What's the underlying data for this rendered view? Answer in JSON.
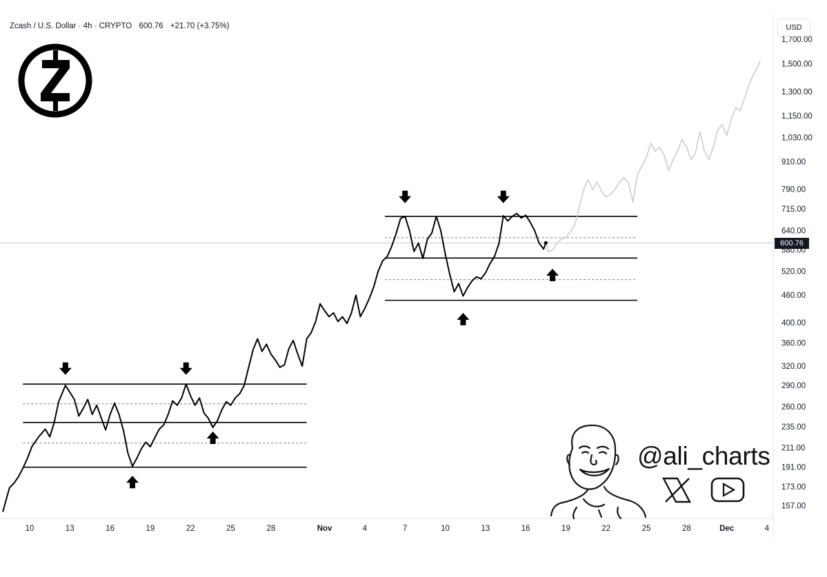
{
  "header": {
    "symbol": "Zcash / U.S. Dollar · 4h · CRYPTO",
    "last": "600.76",
    "change": "+21.70 (+3.75%)",
    "currency_button": "USD",
    "price_tag": "600.76"
  },
  "branding": {
    "handle": "@ali_charts",
    "logo_icon": "zcash-logo-icon",
    "social_icons": [
      "x-logo-icon",
      "youtube-icon"
    ],
    "avatar": "caricature-avatar"
  },
  "chart_data": {
    "type": "line",
    "title": "Zcash / U.S. Dollar · 4h · CRYPTO",
    "y_scale": "log",
    "ylim": [
      147,
      1700
    ],
    "y_ticks": [
      "1,700.00",
      "1,500.00",
      "1,300.00",
      "1,150.00",
      "1,030.00",
      "910.00",
      "790.00",
      "715.00",
      "640.00",
      "580.00",
      "520.00",
      "460.00",
      "400.00",
      "360.00",
      "320.00",
      "290.00",
      "260.00",
      "235.00",
      "211.00",
      "191.00",
      "173.00",
      "157.00"
    ],
    "x_ticks": [
      "10",
      "13",
      "16",
      "19",
      "22",
      "25",
      "28",
      "Nov",
      "4",
      "7",
      "10",
      "13",
      "16",
      "19",
      "22",
      "25",
      "28",
      "Dec",
      "4"
    ],
    "x_tick_dates": [
      "2025-10-10",
      "2025-10-13",
      "2025-10-16",
      "2025-10-19",
      "2025-10-22",
      "2025-10-25",
      "2025-10-28",
      "2025-11-01",
      "2025-11-04",
      "2025-11-07",
      "2025-11-10",
      "2025-11-13",
      "2025-11-16",
      "2025-11-19",
      "2025-11-22",
      "2025-11-25",
      "2025-11-28",
      "2025-12-01",
      "2025-12-04"
    ],
    "grid": false,
    "series": [
      {
        "name": "",
        "color": "#000000",
        "points": [
          [
            "2025-10-08T00:00",
            152
          ],
          [
            "2025-10-08T12:00",
            172
          ],
          [
            "2025-10-08T20:00",
            176
          ],
          [
            "2025-10-09T04:00",
            182
          ],
          [
            "2025-10-09T12:00",
            190
          ],
          [
            "2025-10-09T20:00",
            200
          ],
          [
            "2025-10-10T04:00",
            212
          ],
          [
            "2025-10-10T16:00",
            223
          ],
          [
            "2025-10-11T04:00",
            232
          ],
          [
            "2025-10-11T12:00",
            223
          ],
          [
            "2025-10-11T20:00",
            240
          ],
          [
            "2025-10-12T04:00",
            267
          ],
          [
            "2025-10-12T16:00",
            290
          ],
          [
            "2025-10-13T00:00",
            280
          ],
          [
            "2025-10-13T08:00",
            270
          ],
          [
            "2025-10-13T16:00",
            248
          ],
          [
            "2025-10-14T00:00",
            258
          ],
          [
            "2025-10-14T08:00",
            270
          ],
          [
            "2025-10-14T16:00",
            250
          ],
          [
            "2025-10-15T00:00",
            262
          ],
          [
            "2025-10-15T08:00",
            246
          ],
          [
            "2025-10-15T16:00",
            231
          ],
          [
            "2025-10-16T00:00",
            250
          ],
          [
            "2025-10-16T08:00",
            265
          ],
          [
            "2025-10-16T16:00",
            250
          ],
          [
            "2025-10-17T00:00",
            230
          ],
          [
            "2025-10-17T08:00",
            205
          ],
          [
            "2025-10-17T16:00",
            192
          ],
          [
            "2025-10-18T00:00",
            200
          ],
          [
            "2025-10-18T08:00",
            210
          ],
          [
            "2025-10-18T16:00",
            217
          ],
          [
            "2025-10-19T00:00",
            212
          ],
          [
            "2025-10-19T08:00",
            222
          ],
          [
            "2025-10-19T16:00",
            232
          ],
          [
            "2025-10-20T00:00",
            237
          ],
          [
            "2025-10-20T08:00",
            250
          ],
          [
            "2025-10-20T16:00",
            268
          ],
          [
            "2025-10-21T00:00",
            262
          ],
          [
            "2025-10-21T08:00",
            272
          ],
          [
            "2025-10-21T16:00",
            292
          ],
          [
            "2025-10-22T00:00",
            275
          ],
          [
            "2025-10-22T08:00",
            262
          ],
          [
            "2025-10-22T16:00",
            272
          ],
          [
            "2025-10-23T00:00",
            252
          ],
          [
            "2025-10-23T08:00",
            245
          ],
          [
            "2025-10-23T16:00",
            234
          ],
          [
            "2025-10-24T00:00",
            242
          ],
          [
            "2025-10-24T08:00",
            256
          ],
          [
            "2025-10-24T16:00",
            267
          ],
          [
            "2025-10-25T00:00",
            262
          ],
          [
            "2025-10-25T08:00",
            272
          ],
          [
            "2025-10-25T16:00",
            278
          ],
          [
            "2025-10-26T00:00",
            290
          ],
          [
            "2025-10-26T08:00",
            318
          ],
          [
            "2025-10-26T16:00",
            348
          ],
          [
            "2025-10-27T00:00",
            368
          ],
          [
            "2025-10-27T08:00",
            345
          ],
          [
            "2025-10-27T16:00",
            358
          ],
          [
            "2025-10-28T00:00",
            340
          ],
          [
            "2025-10-28T08:00",
            330
          ],
          [
            "2025-10-28T16:00",
            318
          ],
          [
            "2025-10-29T00:00",
            322
          ],
          [
            "2025-10-29T08:00",
            350
          ],
          [
            "2025-10-29T16:00",
            365
          ],
          [
            "2025-10-30T00:00",
            340
          ],
          [
            "2025-10-30T08:00",
            320
          ],
          [
            "2025-10-30T16:00",
            368
          ],
          [
            "2025-10-31T00:00",
            380
          ],
          [
            "2025-10-31T08:00",
            402
          ],
          [
            "2025-10-31T16:00",
            440
          ],
          [
            "2025-11-01T00:00",
            425
          ],
          [
            "2025-11-01T08:00",
            412
          ],
          [
            "2025-11-01T16:00",
            420
          ],
          [
            "2025-11-02T00:00",
            402
          ],
          [
            "2025-11-02T08:00",
            412
          ],
          [
            "2025-11-02T16:00",
            398
          ],
          [
            "2025-11-03T00:00",
            420
          ],
          [
            "2025-11-03T08:00",
            460
          ],
          [
            "2025-11-03T16:00",
            412
          ],
          [
            "2025-11-04T00:00",
            430
          ],
          [
            "2025-11-04T08:00",
            452
          ],
          [
            "2025-11-04T16:00",
            480
          ],
          [
            "2025-11-05T00:00",
            520
          ],
          [
            "2025-11-05T08:00",
            548
          ],
          [
            "2025-11-05T16:00",
            560
          ],
          [
            "2025-11-06T00:00",
            590
          ],
          [
            "2025-11-06T08:00",
            630
          ],
          [
            "2025-11-06T16:00",
            680
          ],
          [
            "2025-11-07T00:00",
            688
          ],
          [
            "2025-11-07T08:00",
            640
          ],
          [
            "2025-11-07T16:00",
            575
          ],
          [
            "2025-11-08T00:00",
            600
          ],
          [
            "2025-11-08T08:00",
            555
          ],
          [
            "2025-11-08T16:00",
            612
          ],
          [
            "2025-11-09T00:00",
            632
          ],
          [
            "2025-11-09T08:00",
            688
          ],
          [
            "2025-11-09T16:00",
            640
          ],
          [
            "2025-11-10T00:00",
            568
          ],
          [
            "2025-11-10T08:00",
            512
          ],
          [
            "2025-11-10T16:00",
            468
          ],
          [
            "2025-11-11T00:00",
            488
          ],
          [
            "2025-11-11T08:00",
            458
          ],
          [
            "2025-11-11T16:00",
            478
          ],
          [
            "2025-11-12T00:00",
            495
          ],
          [
            "2025-11-12T08:00",
            505
          ],
          [
            "2025-11-12T16:00",
            500
          ],
          [
            "2025-11-13T00:00",
            515
          ],
          [
            "2025-11-13T08:00",
            540
          ],
          [
            "2025-11-13T16:00",
            560
          ],
          [
            "2025-11-14T00:00",
            598
          ],
          [
            "2025-11-14T08:00",
            690
          ],
          [
            "2025-11-14T16:00",
            672
          ],
          [
            "2025-11-15T00:00",
            688
          ],
          [
            "2025-11-15T08:00",
            698
          ],
          [
            "2025-11-15T16:00",
            682
          ],
          [
            "2025-11-16T00:00",
            692
          ],
          [
            "2025-11-16T08:00",
            668
          ],
          [
            "2025-11-16T16:00",
            640
          ],
          [
            "2025-11-17T00:00",
            600
          ],
          [
            "2025-11-17T08:00",
            582
          ],
          [
            "2025-11-17T12:00",
            600.76
          ]
        ]
      },
      {
        "name": "",
        "color": "#cccccc",
        "points": [
          [
            "2025-11-17T12:00",
            600.76
          ],
          [
            "2025-11-17T16:00",
            575
          ],
          [
            "2025-11-18T00:00",
            578
          ],
          [
            "2025-11-18T08:00",
            600
          ],
          [
            "2025-11-18T16:00",
            612
          ],
          [
            "2025-11-19T00:00",
            618
          ],
          [
            "2025-11-19T08:00",
            635
          ],
          [
            "2025-11-19T16:00",
            660
          ],
          [
            "2025-11-20T00:00",
            720
          ],
          [
            "2025-11-20T08:00",
            790
          ],
          [
            "2025-11-20T16:00",
            830
          ],
          [
            "2025-11-21T00:00",
            790
          ],
          [
            "2025-11-21T08:00",
            820
          ],
          [
            "2025-11-21T16:00",
            780
          ],
          [
            "2025-11-22T00:00",
            760
          ],
          [
            "2025-11-22T08:00",
            770
          ],
          [
            "2025-11-22T16:00",
            790
          ],
          [
            "2025-11-23T00:00",
            820
          ],
          [
            "2025-11-23T08:00",
            840
          ],
          [
            "2025-11-23T16:00",
            815
          ],
          [
            "2025-11-24T00:00",
            740
          ],
          [
            "2025-11-24T08:00",
            850
          ],
          [
            "2025-11-24T16:00",
            890
          ],
          [
            "2025-11-25T00:00",
            930
          ],
          [
            "2025-11-25T08:00",
            1000
          ],
          [
            "2025-11-25T16:00",
            960
          ],
          [
            "2025-11-26T00:00",
            980
          ],
          [
            "2025-11-26T08:00",
            940
          ],
          [
            "2025-11-26T16:00",
            870
          ],
          [
            "2025-11-27T00:00",
            920
          ],
          [
            "2025-11-27T08:00",
            960
          ],
          [
            "2025-11-27T16:00",
            1020
          ],
          [
            "2025-11-28T00:00",
            980
          ],
          [
            "2025-11-28T08:00",
            920
          ],
          [
            "2025-11-28T16:00",
            950
          ],
          [
            "2025-11-29T00:00",
            1060
          ],
          [
            "2025-11-29T08:00",
            960
          ],
          [
            "2025-11-29T16:00",
            920
          ],
          [
            "2025-11-30T00:00",
            980
          ],
          [
            "2025-11-30T08:00",
            1070
          ],
          [
            "2025-11-30T16:00",
            1100
          ],
          [
            "2025-12-01T00:00",
            1040
          ],
          [
            "2025-12-01T08:00",
            1130
          ],
          [
            "2025-12-01T16:00",
            1200
          ],
          [
            "2025-12-02T00:00",
            1180
          ],
          [
            "2025-12-02T08:00",
            1260
          ],
          [
            "2025-12-02T16:00",
            1350
          ],
          [
            "2025-12-03T00:00",
            1420
          ],
          [
            "2025-12-03T08:00",
            1480
          ],
          [
            "2025-12-03T12:00",
            1520
          ]
        ]
      }
    ],
    "horizontal_lines": [
      {
        "value": 292,
        "style": "solid",
        "x_start": "2025-10-09T12:00",
        "x_end": "2025-10-30T16:00"
      },
      {
        "value": 264,
        "style": "dotted",
        "x_start": "2025-10-09T12:00",
        "x_end": "2025-10-30T16:00"
      },
      {
        "value": 240,
        "style": "solid",
        "x_start": "2025-10-09T12:00",
        "x_end": "2025-10-30T16:00"
      },
      {
        "value": 216,
        "style": "dotted",
        "x_start": "2025-10-09T12:00",
        "x_end": "2025-10-30T16:00"
      },
      {
        "value": 191,
        "style": "solid",
        "x_start": "2025-10-09T12:00",
        "x_end": "2025-10-30T16:00"
      },
      {
        "value": 688,
        "style": "solid",
        "x_start": "2025-11-05T12:00",
        "x_end": "2025-11-24T08:00"
      },
      {
        "value": 617,
        "style": "dotted",
        "x_start": "2025-11-05T12:00",
        "x_end": "2025-11-24T08:00"
      },
      {
        "value": 556,
        "style": "solid",
        "x_start": "2025-11-05T12:00",
        "x_end": "2025-11-24T08:00"
      },
      {
        "value": 498,
        "style": "dotted",
        "x_start": "2025-11-05T12:00",
        "x_end": "2025-11-24T08:00"
      },
      {
        "value": 448,
        "style": "solid",
        "x_start": "2025-11-05T12:00",
        "x_end": "2025-11-24T08:00"
      }
    ],
    "current_price_line": 600.76,
    "annotations": [
      {
        "type": "arrow-down",
        "x": "2025-10-12T16:00",
        "y": 316
      },
      {
        "type": "arrow-up",
        "x": "2025-10-17T16:00",
        "y": 177
      },
      {
        "type": "arrow-down",
        "x": "2025-10-21T16:00",
        "y": 316
      },
      {
        "type": "arrow-up",
        "x": "2025-10-23T16:00",
        "y": 222
      },
      {
        "type": "arrow-down",
        "x": "2025-11-07T00:00",
        "y": 760
      },
      {
        "type": "arrow-up",
        "x": "2025-11-11T08:00",
        "y": 407
      },
      {
        "type": "arrow-down",
        "x": "2025-11-14T08:00",
        "y": 760
      },
      {
        "type": "arrow-up",
        "x": "2025-11-18T00:00",
        "y": 510
      }
    ]
  }
}
